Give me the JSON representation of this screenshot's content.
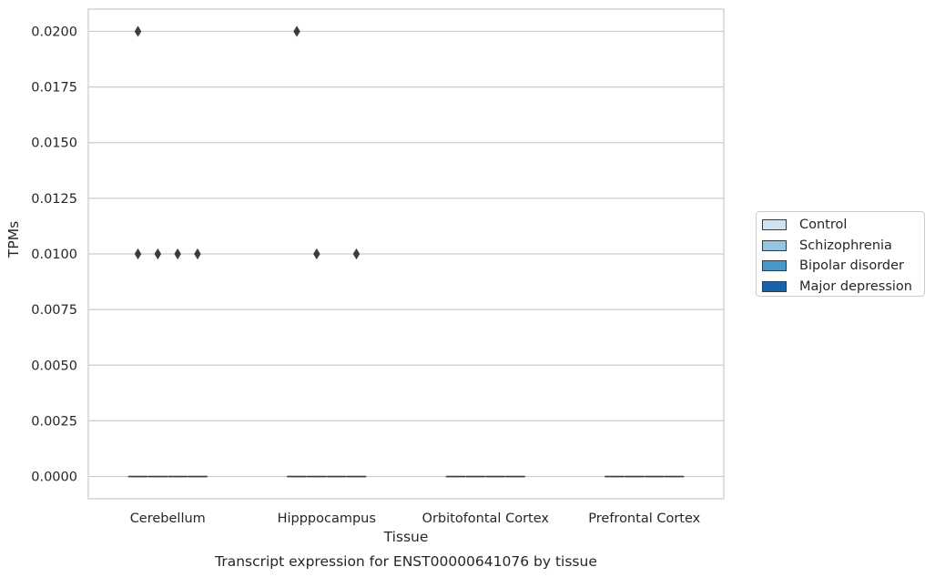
{
  "chart_data": {
    "type": "box",
    "title": "Transcript expression for ENST00000641076 by tissue",
    "xlabel": "Tissue",
    "ylabel": "TPMs",
    "ylim": [
      -0.001,
      0.021
    ],
    "yticks": [
      "0.0000",
      "0.0025",
      "0.0050",
      "0.0075",
      "0.0100",
      "0.0125",
      "0.0150",
      "0.0175",
      "0.0200"
    ],
    "ytick_values": [
      0,
      0.0025,
      0.005,
      0.0075,
      0.01,
      0.0125,
      0.015,
      0.0175,
      0.02
    ],
    "categories": [
      "Cerebellum",
      "Hipppocampus",
      "Orbitofontal Cortex",
      "Prefrontal Cortex"
    ],
    "grid": "horizontal",
    "legend_position": "right",
    "series": [
      {
        "name": "Control",
        "color": "#d0e1f2",
        "boxes": [
          {
            "median": 0,
            "q1": 0,
            "q3": 0
          },
          {
            "median": 0,
            "q1": 0,
            "q3": 0
          },
          {
            "median": 0,
            "q1": 0,
            "q3": 0
          },
          {
            "median": 0,
            "q1": 0,
            "q3": 0
          }
        ],
        "outliers": [
          [
            0.02,
            0.01
          ],
          [
            0.02
          ],
          [],
          []
        ]
      },
      {
        "name": "Schizophrenia",
        "color": "#94c4df",
        "boxes": [
          {
            "median": 0,
            "q1": 0,
            "q3": 0
          },
          {
            "median": 0,
            "q1": 0,
            "q3": 0
          },
          {
            "median": 0,
            "q1": 0,
            "q3": 0
          },
          {
            "median": 0,
            "q1": 0,
            "q3": 0
          }
        ],
        "outliers": [
          [
            0.01
          ],
          [
            0.01
          ],
          [],
          []
        ]
      },
      {
        "name": "Bipolar disorder",
        "color": "#4a98c9",
        "boxes": [
          {
            "median": 0,
            "q1": 0,
            "q3": 0
          },
          {
            "median": 0,
            "q1": 0,
            "q3": 0
          },
          {
            "median": 0,
            "q1": 0,
            "q3": 0
          },
          {
            "median": 0,
            "q1": 0,
            "q3": 0
          }
        ],
        "outliers": [
          [
            0.01
          ],
          [],
          [],
          []
        ]
      },
      {
        "name": "Major depression",
        "color": "#1764ab",
        "boxes": [
          {
            "median": 0,
            "q1": 0,
            "q3": 0
          },
          {
            "median": 0,
            "q1": 0,
            "q3": 0
          },
          {
            "median": 0,
            "q1": 0,
            "q3": 0
          },
          {
            "median": 0,
            "q1": 0,
            "q3": 0
          }
        ],
        "outliers": [
          [
            0.01
          ],
          [
            0.01
          ],
          [],
          []
        ]
      }
    ]
  }
}
